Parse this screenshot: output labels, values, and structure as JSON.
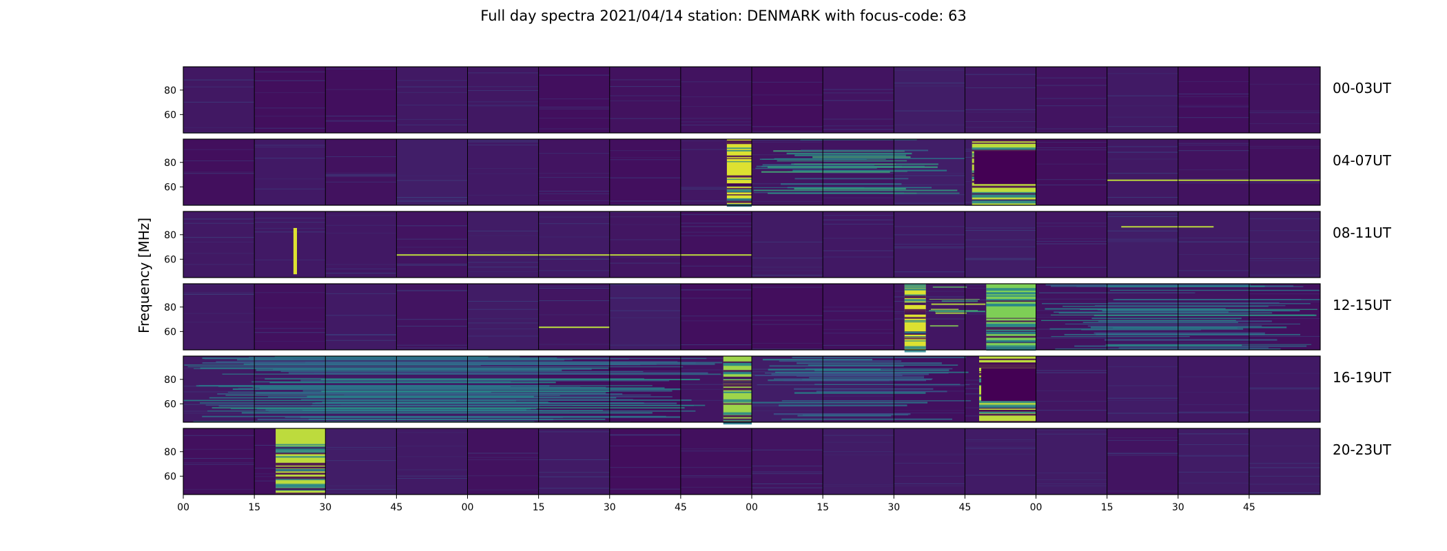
{
  "chart_data": {
    "type": "heatmap",
    "title": "Full day spectra 2021/04/14 station: DENMARK with focus-code: 63",
    "ylabel": "Frequency [MHz]",
    "xlabel": "",
    "y_ticks": [
      60,
      80
    ],
    "ylim": [
      45,
      99
    ],
    "x_tick_labels": [
      "00",
      "15",
      "30",
      "45",
      "00",
      "15",
      "30",
      "45",
      "00",
      "15",
      "30",
      "45",
      "00",
      "15",
      "30",
      "45"
    ],
    "colormap": [
      "#440154",
      "#3b528b",
      "#21918c",
      "#5ec962",
      "#fde725"
    ],
    "panels_per_row": 16,
    "rows": [
      {
        "label": "00-03UT",
        "events": []
      },
      {
        "label": "04-07UT",
        "events": [
          {
            "kind": "burst",
            "start": 7.65,
            "end": 8.0,
            "intensity": 0.95
          },
          {
            "kind": "rfi",
            "start": 8.0,
            "end": 11.0,
            "intensity": 0.55
          },
          {
            "kind": "burst",
            "start": 11.1,
            "end": 12.0,
            "intensity": 0.9,
            "dark_middle": true
          },
          {
            "kind": "line",
            "start": 13.0,
            "end": 16.0,
            "freq": 66
          }
        ]
      },
      {
        "label": "08-11UT",
        "events": [
          {
            "kind": "spike",
            "start": 1.55,
            "end": 1.6
          },
          {
            "kind": "line",
            "start": 3.0,
            "end": 8.0,
            "freq": 64
          },
          {
            "kind": "line",
            "start": 13.2,
            "end": 14.5,
            "freq": 87
          }
        ]
      },
      {
        "label": "12-15UT",
        "events": [
          {
            "kind": "burst",
            "start": 10.15,
            "end": 10.45,
            "intensity": 0.95
          },
          {
            "kind": "rfi",
            "start": 10.45,
            "end": 11.3,
            "intensity": 0.75
          },
          {
            "kind": "burst",
            "start": 11.3,
            "end": 12.0,
            "intensity": 0.8
          },
          {
            "kind": "rfi",
            "start": 12.0,
            "end": 16.0,
            "intensity": 0.45
          },
          {
            "kind": "line",
            "start": 5.0,
            "end": 6.0,
            "freq": 64
          }
        ]
      },
      {
        "label": "16-19UT",
        "events": [
          {
            "kind": "rfi",
            "start": 0.0,
            "end": 7.6,
            "intensity": 0.45
          },
          {
            "kind": "burst",
            "start": 7.6,
            "end": 8.0,
            "intensity": 0.85
          },
          {
            "kind": "rfi",
            "start": 8.0,
            "end": 11.2,
            "intensity": 0.4
          },
          {
            "kind": "burst",
            "start": 11.2,
            "end": 12.0,
            "intensity": 0.9,
            "dark_middle": true
          }
        ]
      },
      {
        "label": "20-23UT",
        "events": [
          {
            "kind": "burst",
            "start": 1.3,
            "end": 2.0,
            "intensity": 0.9
          }
        ]
      }
    ]
  }
}
